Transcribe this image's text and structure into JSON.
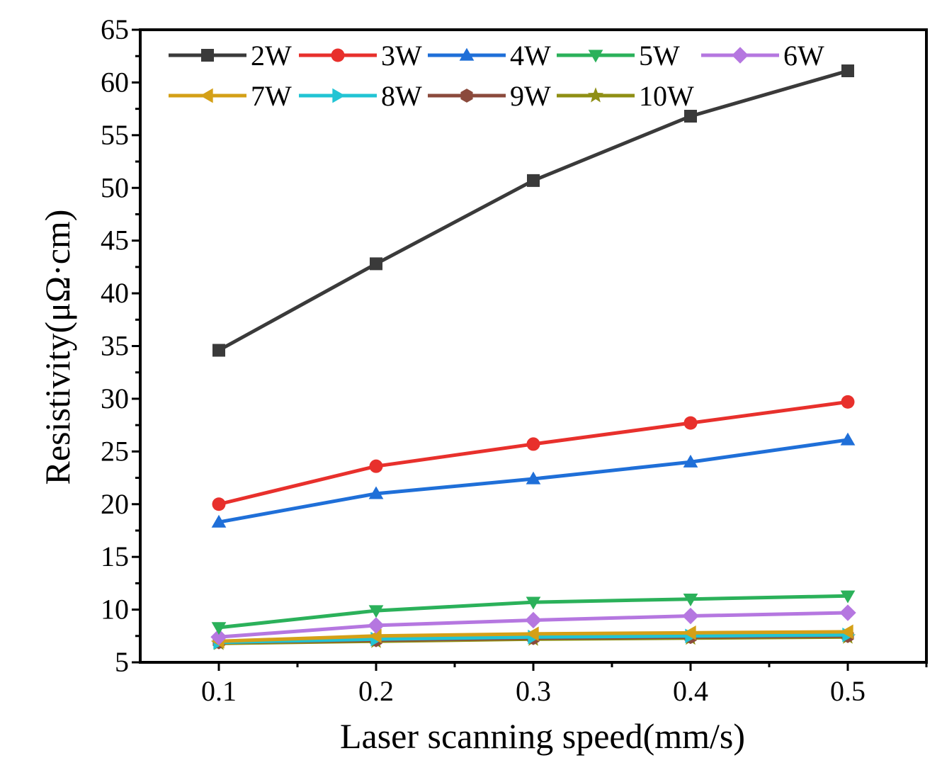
{
  "chart_data": {
    "type": "line",
    "title": "",
    "xlabel": "Laser scanning speed(mm/s)",
    "ylabel": "Resistivity(μΩ·cm)",
    "x": [
      0.1,
      0.2,
      0.3,
      0.4,
      0.5
    ],
    "x_tick_labels": [
      "0.1",
      "0.2",
      "0.3",
      "0.4",
      "0.5"
    ],
    "xlim": [
      0.05,
      0.55
    ],
    "ylim": [
      5,
      65
    ],
    "y_ticks": [
      5,
      10,
      15,
      20,
      25,
      30,
      35,
      40,
      45,
      50,
      55,
      60,
      65
    ],
    "y_tick_labels": [
      "5",
      "10",
      "15",
      "20",
      "25",
      "30",
      "35",
      "40",
      "45",
      "50",
      "55",
      "60",
      "65"
    ],
    "grid": false,
    "legend_position": "top",
    "series": [
      {
        "name": "2W",
        "color": "#3a3a3a",
        "marker": "square",
        "values": [
          34.6,
          42.8,
          50.7,
          56.8,
          61.1
        ]
      },
      {
        "name": "3W",
        "color": "#e8302c",
        "marker": "circle",
        "values": [
          20.0,
          23.6,
          25.7,
          27.7,
          29.7
        ]
      },
      {
        "name": "4W",
        "color": "#1f6fd8",
        "marker": "triangle-up",
        "values": [
          18.3,
          21.0,
          22.4,
          24.0,
          26.1
        ]
      },
      {
        "name": "5W",
        "color": "#2bb15a",
        "marker": "triangle-down",
        "values": [
          8.3,
          9.9,
          10.7,
          11.0,
          11.3
        ]
      },
      {
        "name": "6W",
        "color": "#b577e0",
        "marker": "diamond",
        "values": [
          7.4,
          8.5,
          9.0,
          9.4,
          9.7
        ]
      },
      {
        "name": "7W",
        "color": "#d4a017",
        "marker": "triangle-left",
        "values": [
          7.0,
          7.5,
          7.7,
          7.8,
          7.9
        ]
      },
      {
        "name": "8W",
        "color": "#22c4d4",
        "marker": "triangle-right",
        "values": [
          6.9,
          7.2,
          7.4,
          7.5,
          7.6
        ]
      },
      {
        "name": "9W",
        "color": "#8b4a3c",
        "marker": "hexagon",
        "values": [
          6.9,
          7.1,
          7.3,
          7.4,
          7.5
        ]
      },
      {
        "name": "10W",
        "color": "#8f8f14",
        "marker": "star",
        "values": [
          6.8,
          7.0,
          7.2,
          7.3,
          7.4
        ]
      }
    ]
  }
}
